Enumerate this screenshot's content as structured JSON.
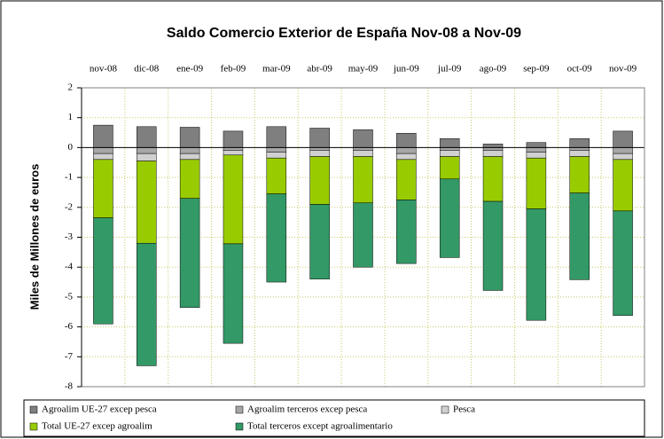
{
  "chart_data": {
    "type": "stacked-bar",
    "title": "Saldo Comercio Exterior de España Nov-08 a Nov-09",
    "ylabel": "Miles de Millones de euros",
    "categories": [
      "nov-08",
      "dic-08",
      "ene-09",
      "feb-09",
      "mar-09",
      "abr-09",
      "may-09",
      "jun-09",
      "jul-09",
      "ago-09",
      "sep-09",
      "oct-09",
      "nov-09"
    ],
    "series": [
      {
        "name": "Agroalim UE-27 excep pesca",
        "color": "#7f7f7f",
        "values": [
          0.75,
          0.7,
          0.68,
          0.55,
          0.7,
          0.65,
          0.6,
          0.48,
          0.3,
          0.12,
          0.17,
          0.3,
          0.55
        ]
      },
      {
        "name": "Agroalim terceros excep pesca",
        "color": "#a6a6a6",
        "values": [
          -0.2,
          -0.2,
          -0.2,
          -0.1,
          -0.15,
          -0.1,
          -0.1,
          -0.2,
          -0.1,
          -0.1,
          -0.15,
          -0.1,
          -0.2
        ]
      },
      {
        "name": "Pesca",
        "color": "#d0d0d0",
        "values": [
          -0.2,
          -0.25,
          -0.2,
          -0.15,
          -0.2,
          -0.2,
          -0.2,
          -0.2,
          -0.2,
          -0.2,
          -0.2,
          -0.2,
          -0.2
        ]
      },
      {
        "name": "Total UE-27 excep agroalim",
        "color": "#99cc00",
        "values": [
          -1.95,
          -2.75,
          -1.3,
          -2.97,
          -1.2,
          -1.6,
          -1.55,
          -1.35,
          -0.75,
          -1.5,
          -1.7,
          -1.22,
          -1.72
        ]
      },
      {
        "name": "Total terceros except agroalimentario",
        "color": "#339966",
        "values": [
          -3.55,
          -4.1,
          -3.65,
          -3.33,
          -2.95,
          -2.5,
          -2.15,
          -2.13,
          -2.63,
          -2.98,
          -3.73,
          -2.9,
          -3.5
        ]
      }
    ],
    "ylim": [
      -8,
      2
    ],
    "yticks": [
      2,
      1,
      0,
      -1,
      -2,
      -3,
      -4,
      -5,
      -6,
      -7,
      -8
    ],
    "grid": true
  }
}
